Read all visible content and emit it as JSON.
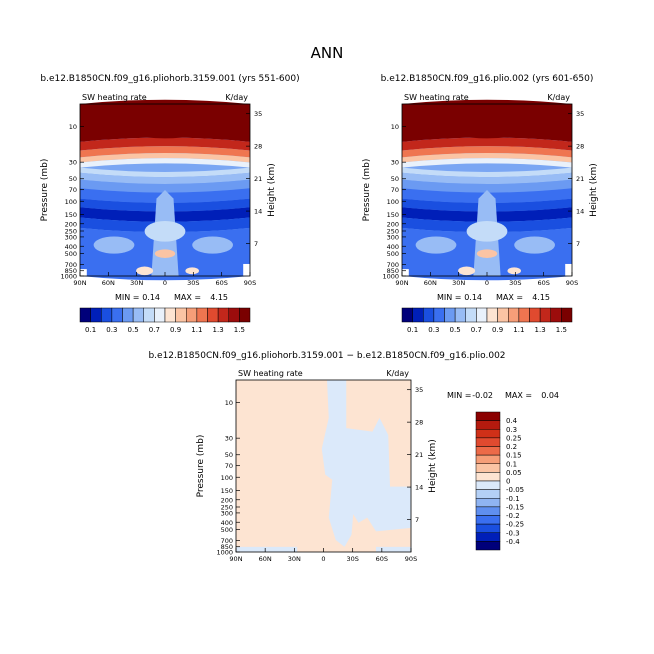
{
  "page_title": "ANN",
  "chart_data": [
    {
      "type": "heatmap",
      "id": "p1",
      "title": "b.e12.B1850CN.f09_g16.pliohorb.3159.001 (yrs 551-600)",
      "variable": "SW heating rate",
      "units": "K/day",
      "ylabel": "Pressure (mb)",
      "y2label": "Height (km)",
      "pressure_ticks": [
        "10",
        "30",
        "50",
        "70",
        "100",
        "150",
        "200",
        "250",
        "300",
        "400",
        "500",
        "700",
        "850",
        "1000"
      ],
      "height_ticks": [
        "35",
        "28",
        "21",
        "14",
        "7"
      ],
      "lat_ticks": [
        "90N",
        "60N",
        "30N",
        "0",
        "30S",
        "60S",
        "90S"
      ],
      "stats": {
        "min_label": "MIN =",
        "min": "0.14",
        "max_label": "MAX =",
        "max": "4.15"
      },
      "colorbar_labels": [
        "0.1",
        "0.3",
        "0.5",
        "0.7",
        "0.9",
        "1.1",
        "1.3",
        "1.5"
      ],
      "colorbar_colors": [
        "#00007a",
        "#001fb8",
        "#1a4fe0",
        "#3a6ff0",
        "#6b9af2",
        "#98bcf5",
        "#c4dcf8",
        "#e9f1fb",
        "#fde4d2",
        "#fbc4a4",
        "#f69e78",
        "#ef7550",
        "#e04a2f",
        "#c2271b",
        "#9c0c0c",
        "#7a0000"
      ]
    },
    {
      "type": "heatmap",
      "id": "p2",
      "title": "b.e12.B1850CN.f09_g16.plio.002 (yrs 601-650)",
      "variable": "SW heating rate",
      "units": "K/day",
      "ylabel": "Pressure (mb)",
      "y2label": "Height (km)",
      "pressure_ticks": [
        "10",
        "30",
        "50",
        "70",
        "100",
        "150",
        "200",
        "250",
        "300",
        "400",
        "500",
        "700",
        "850",
        "1000"
      ],
      "height_ticks": [
        "35",
        "28",
        "21",
        "14",
        "7"
      ],
      "lat_ticks": [
        "90N",
        "60N",
        "30N",
        "0",
        "30S",
        "60S",
        "90S"
      ],
      "stats": {
        "min_label": "MIN =",
        "min": "0.14",
        "max_label": "MAX =",
        "max": "4.15"
      },
      "colorbar_labels": [
        "0.1",
        "0.3",
        "0.5",
        "0.7",
        "0.9",
        "1.1",
        "1.3",
        "1.5"
      ],
      "colorbar_colors": [
        "#00007a",
        "#001fb8",
        "#1a4fe0",
        "#3a6ff0",
        "#6b9af2",
        "#98bcf5",
        "#c4dcf8",
        "#e9f1fb",
        "#fde4d2",
        "#fbc4a4",
        "#f69e78",
        "#ef7550",
        "#e04a2f",
        "#c2271b",
        "#9c0c0c",
        "#7a0000"
      ]
    },
    {
      "type": "heatmap",
      "id": "diff",
      "title": "b.e12.B1850CN.f09_g16.pliohorb.3159.001 − b.e12.B1850CN.f09_g16.plio.002",
      "variable": "SW heating rate",
      "units": "K/day",
      "ylabel": "Pressure (mb)",
      "y2label": "Height (km)",
      "pressure_ticks": [
        "10",
        "30",
        "50",
        "70",
        "100",
        "150",
        "200",
        "250",
        "300",
        "400",
        "500",
        "700",
        "850",
        "1000"
      ],
      "height_ticks": [
        "35",
        "28",
        "21",
        "14",
        "7"
      ],
      "lat_ticks": [
        "90N",
        "60N",
        "30N",
        "0",
        "30S",
        "60S",
        "90S"
      ],
      "stats": {
        "min_label": "MIN =",
        "min": "-0.02",
        "max_label": "MAX =",
        "max": "0.04"
      },
      "colorbar_labels": [
        "0.4",
        "0.3",
        "0.25",
        "0.2",
        "0.15",
        "0.1",
        "0.05",
        "0",
        "-0.05",
        "-0.1",
        "-0.15",
        "-0.2",
        "-0.25",
        "-0.3",
        "-0.4"
      ],
      "colorbar_colors": [
        "#8b0000",
        "#b41a0e",
        "#cf3018",
        "#e04a2f",
        "#ec6a48",
        "#f69e78",
        "#fbc4a4",
        "#fde4d2",
        "#dbe9fa",
        "#b4d0f6",
        "#8fb4f2",
        "#5f8ff0",
        "#3a6ff0",
        "#1a4fe0",
        "#001fb8",
        "#00007a"
      ]
    }
  ]
}
